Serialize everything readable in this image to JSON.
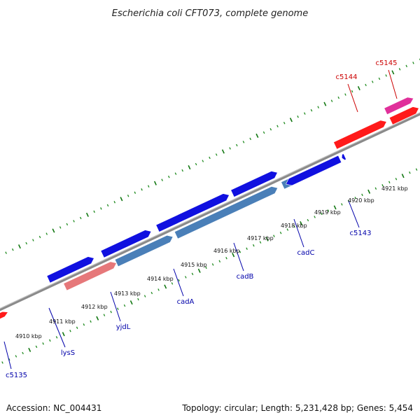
{
  "title": "Escherichia coli CFT073, complete genome",
  "footer": {
    "accession": "Accession: NC_004431",
    "stats": "Topology: circular; Length: 5,231,428 bp; Genes: 5,454"
  },
  "colors": {
    "backbone": "#8a8a8a",
    "tick_minor": "#1e8a1e",
    "tick_major": "#117711",
    "forward_gene": "#1010e0",
    "reverse_gene": "#4a7fb8",
    "rna_red": "#ff1a1a",
    "pseudo_pink": "#e6787a",
    "magenta": "#e0309a",
    "label_blue": "#0000aa",
    "label_red": "#cc0000"
  },
  "scale": {
    "tick_labels": [
      "4910 kbp",
      "4911 kbp",
      "4912 kbp",
      "4913 kbp",
      "4914 kbp",
      "4915 kbp",
      "4916 kbp",
      "4917 kbp",
      "4918 kbp",
      "4919 kbp",
      "4920 kbp",
      "4921 kbp"
    ]
  },
  "gene_labels": [
    {
      "text": "c5135",
      "color": "blue"
    },
    {
      "text": "lysS",
      "color": "blue"
    },
    {
      "text": "yjdL",
      "color": "blue"
    },
    {
      "text": "cadA",
      "color": "blue"
    },
    {
      "text": "cadB",
      "color": "blue"
    },
    {
      "text": "cadC",
      "color": "blue"
    },
    {
      "text": "c5143",
      "color": "blue"
    },
    {
      "text": "c5144",
      "color": "red"
    },
    {
      "text": "c5145",
      "color": "red"
    }
  ]
}
